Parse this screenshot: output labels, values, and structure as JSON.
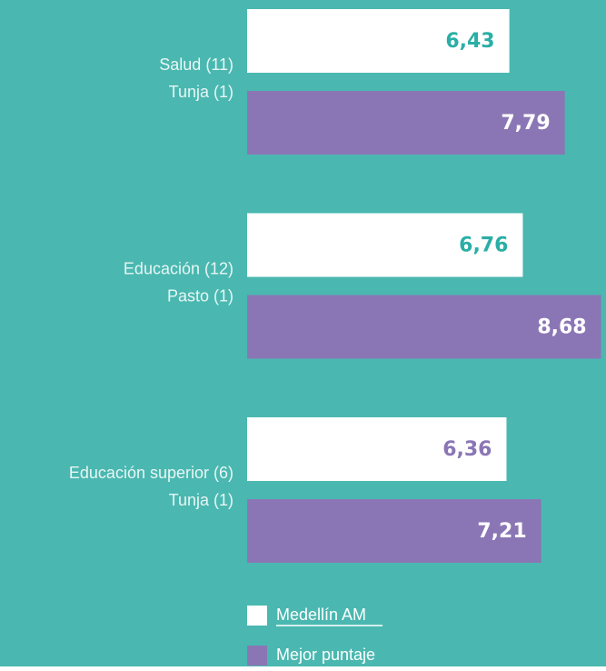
{
  "chart_data": {
    "type": "hbar",
    "categories": [
      "Salud (11)",
      "Educación (12)",
      "Educación superior (6)"
    ],
    "xlim": [
      0,
      8.8
    ],
    "background": "#4ab8b0",
    "series": [
      {
        "name": "Medellín AM",
        "color": "#ffffff",
        "values": [
          6.43,
          6.76,
          6.36
        ],
        "value_labels": [
          "6,43",
          "6,76",
          "6,36"
        ],
        "value_label_colors": [
          "#2aaea6",
          "#2aaea6",
          "#8b76b5"
        ]
      },
      {
        "name": "Mejor puntaje",
        "color": "#8b76b5",
        "labels": [
          "Tunja (1)",
          "Pasto (1)",
          "Tunja (1)"
        ],
        "values": [
          7.79,
          8.68,
          7.21
        ],
        "value_labels": [
          "7,79",
          "8,68",
          "7,21"
        ],
        "value_label_colors": [
          "#ffffff",
          "#ffffff",
          "#ffffff"
        ]
      }
    ]
  }
}
